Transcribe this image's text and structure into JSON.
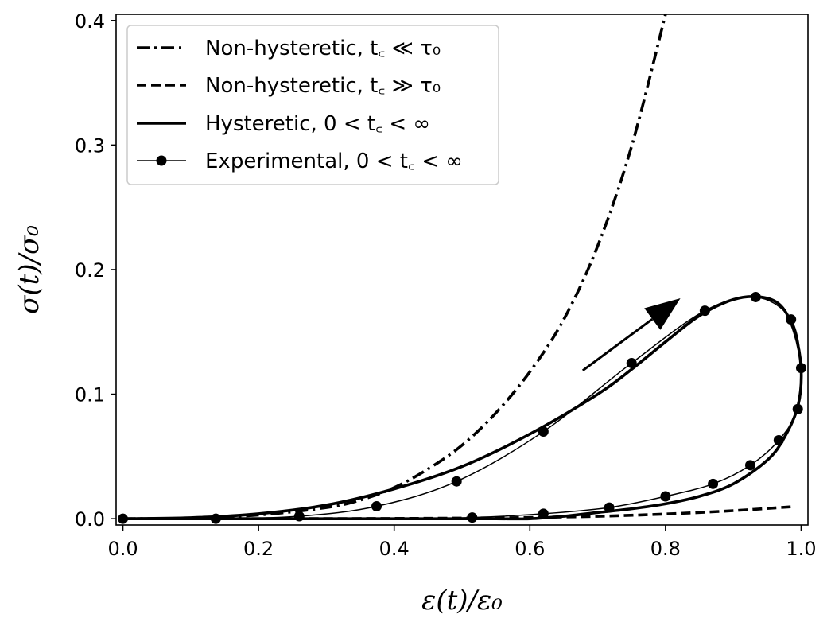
{
  "chart_data": {
    "type": "line",
    "xlabel": "ε(t)/ε₀",
    "ylabel": "σ(t)/σ₀",
    "xlim": [
      -0.01,
      1.01
    ],
    "ylim": [
      -0.005,
      0.405
    ],
    "x_ticks": [
      "0.0",
      "0.2",
      "0.4",
      "0.6",
      "0.8",
      "1.0"
    ],
    "y_ticks": [
      "0.0",
      "0.1",
      "0.2",
      "0.3",
      "0.4"
    ],
    "grid": false,
    "legend_position": "top-left",
    "legend": [
      {
        "text": "Non-hysteretic, t꜀ ≪ τ₀",
        "style": "dashdot"
      },
      {
        "text": "Non-hysteretic, t꜀ ≫ τ₀",
        "style": "dashed"
      },
      {
        "text": "Hysteretic, 0 < t꜀ < ∞",
        "style": "solid"
      },
      {
        "text": "Experimental, 0 < t꜀ < ∞",
        "style": "solid-marker"
      }
    ],
    "series": [
      {
        "name": "Non-hysteretic, tc ≪ τ0",
        "style": "dashdot",
        "x": [
          0.0,
          0.1,
          0.2,
          0.3,
          0.35,
          0.4,
          0.45,
          0.5,
          0.55,
          0.6,
          0.65,
          0.7,
          0.75,
          0.8
        ],
        "y": [
          0.0,
          0.0005,
          0.003,
          0.009,
          0.015,
          0.025,
          0.04,
          0.059,
          0.085,
          0.118,
          0.16,
          0.219,
          0.299,
          0.405
        ]
      },
      {
        "name": "Non-hysteretic, tc ≫ τ0",
        "style": "dashed",
        "x": [
          0.0,
          0.2,
          0.4,
          0.5,
          0.6,
          0.7,
          0.8,
          0.9,
          0.99
        ],
        "y": [
          0.0,
          0.0,
          0.0002,
          0.0005,
          0.001,
          0.002,
          0.0038,
          0.0065,
          0.0098
        ]
      },
      {
        "name": "Hysteretic, 0 < tc < ∞",
        "style": "solid",
        "x": [
          0.0,
          0.1,
          0.2,
          0.3,
          0.4,
          0.5,
          0.6,
          0.7,
          0.75,
          0.8,
          0.85,
          0.9,
          0.94,
          0.97,
          0.99,
          1.0,
          0.995,
          0.975,
          0.95,
          0.9,
          0.85,
          0.8,
          0.75,
          0.7,
          0.65,
          0.6,
          0.55,
          0.5,
          0.4,
          0.3,
          0.2,
          0.1,
          0.0
        ],
        "y": [
          0.0,
          0.0008,
          0.004,
          0.011,
          0.024,
          0.042,
          0.068,
          0.1,
          0.12,
          0.142,
          0.163,
          0.176,
          0.178,
          0.171,
          0.15,
          0.12,
          0.09,
          0.065,
          0.047,
          0.028,
          0.018,
          0.012,
          0.008,
          0.005,
          0.002,
          0.0,
          0.0,
          0.0,
          0.0,
          0.0,
          0.0,
          0.0,
          0.0
        ]
      },
      {
        "name": "Experimental, 0 < tc < ∞",
        "style": "solid-marker",
        "x": [
          0.0,
          0.137,
          0.26,
          0.374,
          0.492,
          0.62,
          0.75,
          0.858,
          0.933,
          0.985,
          1.0,
          0.995,
          0.967,
          0.925,
          0.87,
          0.8,
          0.717,
          0.62,
          0.515,
          0.4,
          0.26,
          0.137,
          0.0
        ],
        "y": [
          0.0,
          0.0,
          0.002,
          0.01,
          0.03,
          0.07,
          0.125,
          0.167,
          0.178,
          0.16,
          0.121,
          0.088,
          0.063,
          0.043,
          0.028,
          0.018,
          0.009,
          0.004,
          0.001,
          0.0,
          0.0,
          0.0,
          0.0
        ],
        "marker_index": [
          0,
          1,
          2,
          3,
          4,
          5,
          6,
          7,
          8,
          9,
          10,
          11,
          12,
          13,
          14,
          15,
          16,
          17,
          18
        ]
      }
    ],
    "annotations": [
      {
        "type": "arrow",
        "from": [
          0.678,
          0.119
        ],
        "to": [
          0.822,
          0.177
        ]
      }
    ]
  }
}
